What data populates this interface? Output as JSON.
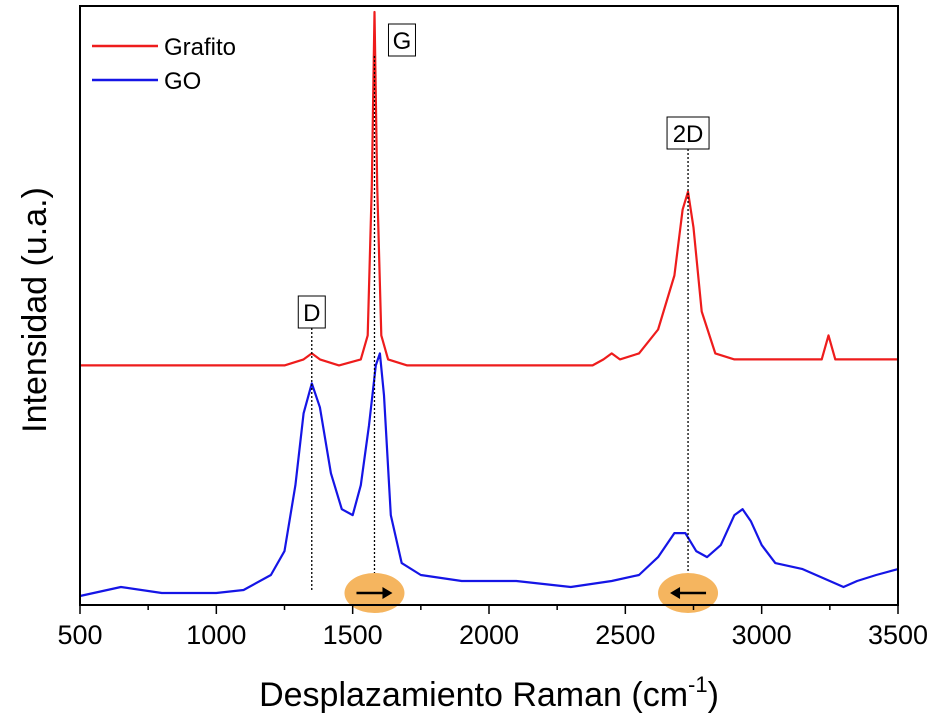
{
  "chart_data": {
    "type": "line",
    "xlabel": "Desplazamiento Raman (cm",
    "xlabel_sup": "-1",
    "xlabel_close": ")",
    "ylabel": "Intensidad (u.a.)",
    "xlim": [
      500,
      3500
    ],
    "ylim": [
      0,
      1
    ],
    "y_ticks_visible": false,
    "grid": false,
    "legend_position": "top-left",
    "x_ticks": [
      "500",
      "1000",
      "1500",
      "2000",
      "2500",
      "3000",
      "3500"
    ],
    "x_tick_values": [
      500,
      1000,
      1500,
      2000,
      2500,
      3000,
      3500
    ],
    "x_minor_step": 250,
    "series": [
      {
        "name": "Grafito",
        "color": "#ee1c1c",
        "x": [
          500,
          800,
          1100,
          1250,
          1320,
          1350,
          1380,
          1450,
          1530,
          1555,
          1570,
          1580,
          1590,
          1605,
          1630,
          1700,
          1900,
          2200,
          2380,
          2420,
          2450,
          2480,
          2550,
          2620,
          2680,
          2710,
          2730,
          2750,
          2780,
          2830,
          2900,
          3100,
          3220,
          3245,
          3270,
          3350,
          3500
        ],
        "y": [
          0.4,
          0.4,
          0.4,
          0.4,
          0.41,
          0.42,
          0.41,
          0.4,
          0.41,
          0.45,
          0.7,
          0.99,
          0.7,
          0.45,
          0.41,
          0.4,
          0.4,
          0.4,
          0.4,
          0.41,
          0.42,
          0.41,
          0.42,
          0.46,
          0.55,
          0.66,
          0.69,
          0.63,
          0.49,
          0.42,
          0.41,
          0.41,
          0.41,
          0.45,
          0.41,
          0.41,
          0.41
        ]
      },
      {
        "name": "GO",
        "color": "#1515e6",
        "x": [
          500,
          650,
          800,
          1000,
          1100,
          1200,
          1250,
          1290,
          1320,
          1350,
          1380,
          1420,
          1460,
          1500,
          1530,
          1560,
          1585,
          1600,
          1615,
          1640,
          1680,
          1750,
          1900,
          2100,
          2300,
          2450,
          2550,
          2620,
          2680,
          2720,
          2760,
          2800,
          2850,
          2900,
          2930,
          2960,
          3000,
          3050,
          3150,
          3250,
          3300,
          3350,
          3420,
          3500
        ],
        "y": [
          0.015,
          0.03,
          0.02,
          0.02,
          0.025,
          0.05,
          0.09,
          0.2,
          0.32,
          0.37,
          0.33,
          0.22,
          0.16,
          0.15,
          0.2,
          0.3,
          0.4,
          0.42,
          0.35,
          0.15,
          0.07,
          0.05,
          0.04,
          0.04,
          0.03,
          0.04,
          0.05,
          0.08,
          0.12,
          0.12,
          0.09,
          0.08,
          0.1,
          0.15,
          0.16,
          0.14,
          0.1,
          0.07,
          0.06,
          0.04,
          0.03,
          0.04,
          0.05,
          0.06
        ]
      }
    ],
    "annotations": [
      {
        "label": "D",
        "x": 1350
      },
      {
        "label": "G",
        "x": 1580
      },
      {
        "label": "2D",
        "x": 2730
      }
    ],
    "shift_markers": [
      {
        "x": 1580,
        "direction": "right",
        "color": "#f5b55f"
      },
      {
        "x": 2730,
        "direction": "left",
        "color": "#f5b55f"
      }
    ]
  }
}
